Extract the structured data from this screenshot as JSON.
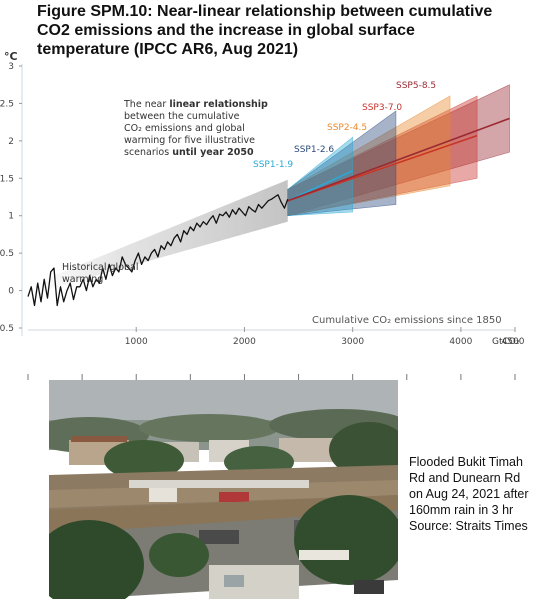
{
  "title_lines": [
    "Figure SPM.10: Near-linear relationship between cumulative",
    "CO2 emissions and the increase in global surface",
    "temperature (IPCC AR6, Aug 2021)"
  ],
  "chart_data": {
    "type": "line",
    "y_unit": "°C",
    "xlabel": "Cumulative CO₂ emissions since 1850",
    "x_unit": "GtCO₂",
    "xlim": [
      0,
      4500
    ],
    "ylim": [
      -0.5,
      3
    ],
    "xticks": [
      1000,
      2000,
      3000,
      4000,
      4500
    ],
    "yticks": [
      -0.5,
      0,
      0.5,
      1,
      1.5,
      2,
      2.5,
      3
    ],
    "historical_label_lines": [
      "Historical global",
      "warming"
    ],
    "annotation_lines": [
      {
        "plain": "The near ",
        "bold": "linear relationship"
      },
      {
        "plain": "between the cumulative",
        "bold": ""
      },
      {
        "plain": "CO₂ emissions and global",
        "bold": ""
      },
      {
        "plain": "warming for five illustrative",
        "bold": ""
      },
      {
        "plain": "scenarios ",
        "bold": "until year 2050"
      }
    ],
    "historical": {
      "name": "Historical global warming",
      "x": [
        0,
        30,
        60,
        90,
        120,
        150,
        180,
        210,
        240,
        270,
        300,
        330,
        360,
        390,
        420,
        450,
        480,
        510,
        540,
        570,
        600,
        630,
        660,
        690,
        720,
        750,
        780,
        810,
        840,
        870,
        900,
        930,
        960,
        990,
        1020,
        1050,
        1080,
        1110,
        1140,
        1170,
        1200,
        1230,
        1260,
        1290,
        1320,
        1350,
        1380,
        1410,
        1440,
        1470,
        1500,
        1530,
        1560,
        1590,
        1620,
        1650,
        1680,
        1710,
        1740,
        1770,
        1800,
        1830,
        1860,
        1890,
        1920,
        1950,
        1980,
        2010,
        2040,
        2070,
        2100,
        2130,
        2160,
        2190,
        2220,
        2250,
        2280,
        2310,
        2340,
        2370,
        2400
      ],
      "y": [
        -0.08,
        0.05,
        -0.2,
        0.1,
        -0.15,
        0.15,
        -0.1,
        0.25,
        0.3,
        -0.2,
        0.05,
        -0.15,
        0.0,
        0.1,
        -0.12,
        0.05,
        0.05,
        0.15,
        0.0,
        0.2,
        0.05,
        0.15,
        0.1,
        0.3,
        0.15,
        0.35,
        0.2,
        0.3,
        0.25,
        0.45,
        0.35,
        0.3,
        0.25,
        0.4,
        0.5,
        0.35,
        0.45,
        0.4,
        0.5,
        0.55,
        0.45,
        0.6,
        0.55,
        0.65,
        0.6,
        0.7,
        0.75,
        0.65,
        0.8,
        0.75,
        0.85,
        0.8,
        0.9,
        0.85,
        0.92,
        0.88,
        0.95,
        1.0,
        0.9,
        1.02,
        1.0,
        1.05,
        0.98,
        1.08,
        1.02,
        1.1,
        1.05,
        1.0,
        1.12,
        1.08,
        1.05,
        1.15,
        1.1,
        1.15,
        1.2,
        1.22,
        1.25,
        1.28,
        1.18,
        1.1,
        1.22
      ]
    },
    "series": [
      {
        "name": "SSP1-1.9",
        "color": "#2aa9d6",
        "x": [
          2400,
          3000
        ],
        "y": [
          1.2,
          1.6
        ],
        "lower": [
          1.0,
          1.05
        ],
        "upper": [
          1.35,
          2.05
        ]
      },
      {
        "name": "SSP1-2.6",
        "color": "#2c4a7e",
        "x": [
          2400,
          3400
        ],
        "y": [
          1.2,
          1.7
        ],
        "lower": [
          1.0,
          1.15
        ],
        "upper": [
          1.35,
          2.4
        ]
      },
      {
        "name": "SSP2-4.5",
        "color": "#e8892d",
        "x": [
          2400,
          3900
        ],
        "y": [
          1.2,
          1.95
        ],
        "lower": [
          1.0,
          1.4
        ],
        "upper": [
          1.35,
          2.6
        ]
      },
      {
        "name": "SSP3-7.0",
        "color": "#c8332a",
        "x": [
          2400,
          4150
        ],
        "y": [
          1.2,
          2.07
        ],
        "lower": [
          1.0,
          1.5
        ],
        "upper": [
          1.35,
          2.6
        ]
      },
      {
        "name": "SSP5-8.5",
        "color": "#9b2a33",
        "x": [
          2400,
          4450
        ],
        "y": [
          1.2,
          2.3
        ],
        "lower": [
          1.0,
          1.85
        ],
        "upper": [
          1.35,
          2.75
        ]
      }
    ],
    "legend_placement": "labels at end of each scenario band",
    "grid": false
  },
  "photo": {
    "caption_lines": [
      "Flooded Bukit Timah",
      "Rd and Dunearn Rd",
      "on Aug 24, 2021 after",
      "160mm rain in 3 hr",
      "Source: Straits Times"
    ]
  }
}
